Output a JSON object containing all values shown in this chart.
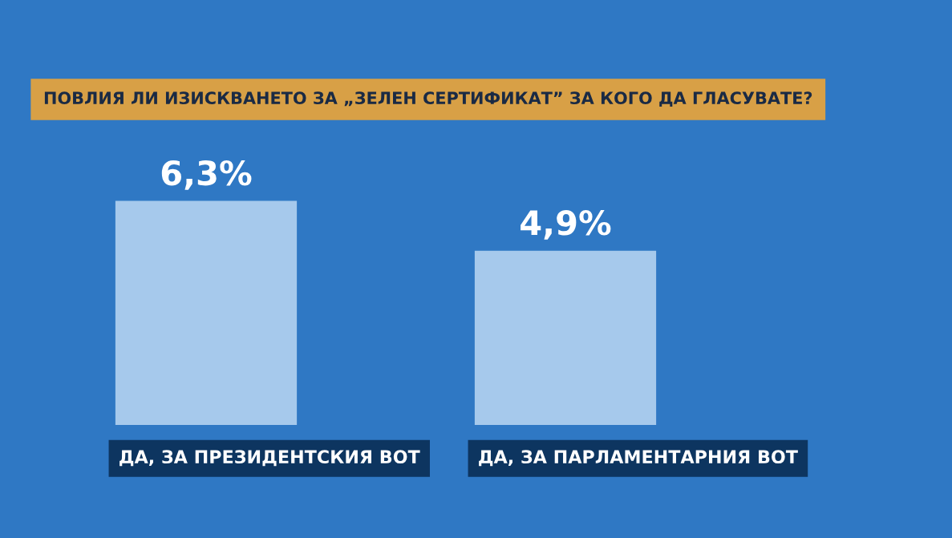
{
  "chart_data": {
    "type": "bar",
    "title": "ПОВЛИЯ ЛИ ИЗИСКВАНЕТО ЗА „ЗЕЛЕН СЕРТИФИКАТ” ЗА КОГО ДА ГЛАСУВАТЕ?",
    "categories": [
      "ДА, ЗА ПРЕЗИДЕНТСКИЯ ВОТ",
      "ДА, ЗА ПАРЛАМЕНТАРНИЯ ВОТ"
    ],
    "values": [
      6.3,
      4.9
    ],
    "value_labels": [
      "6,3%",
      "4,9%"
    ],
    "color": "#a6c9ec"
  }
}
